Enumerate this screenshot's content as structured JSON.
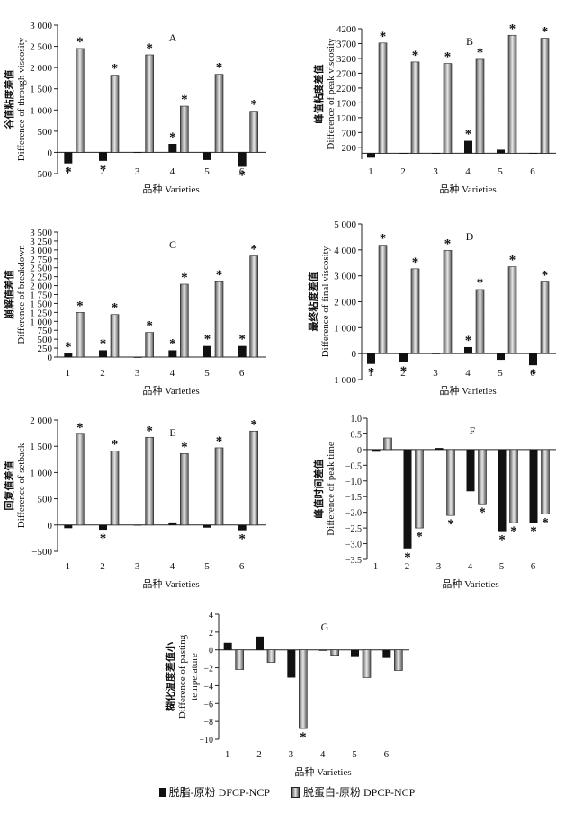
{
  "legend": {
    "dfcp": "脱脂-原粉 DFCP-NCP",
    "dpcp": "脱蛋白-原粉 DPCP-NCP"
  },
  "colors": {
    "dfcp": "#111111",
    "dpcp_light": "#e8e8e8",
    "dpcp_dark": "#555555",
    "axis": "#222222"
  },
  "chart_data": [
    {
      "type": "bar",
      "panel": "A",
      "xlabel": "品种 Varieties",
      "ylabel": [
        "谷值粘度差值",
        "Difference of through viscosity"
      ],
      "ylim": [
        -500,
        3000
      ],
      "yticks": [
        -500,
        0,
        500,
        1000,
        1500,
        2000,
        2500,
        3000
      ],
      "ytick_labels": [
        "−500",
        "0",
        "500",
        "1 000",
        "1 500",
        "2 000",
        "2 500",
        "3 000"
      ],
      "categories": [
        "1",
        "2",
        "3",
        "4",
        "5",
        "6"
      ],
      "series": [
        {
          "values": [
            -260,
            -200,
            0,
            200,
            -180,
            -340
          ]
        },
        {
          "values": [
            2450,
            1820,
            2300,
            1090,
            1840,
            970
          ]
        }
      ],
      "stars": [
        [
          true,
          true
        ],
        [
          true,
          true
        ],
        [
          false,
          true
        ],
        [
          true,
          true
        ],
        [
          false,
          true
        ],
        [
          true,
          true
        ]
      ]
    },
    {
      "type": "bar",
      "panel": "B",
      "xlabel": "品种 Varieties",
      "ylabel": [
        "峰值粘度差值",
        "Difference of peak viscosity"
      ],
      "ylim": [
        -200,
        4200
      ],
      "yticks": [
        200,
        700,
        1200,
        1700,
        2200,
        2700,
        3200,
        3700,
        4200
      ],
      "ytick_labels": [
        "200",
        "700",
        "1200",
        "1700",
        "2200",
        "2700",
        "3200",
        "3700",
        "4200"
      ],
      "categories": [
        "1",
        "2",
        "3",
        "4",
        "5",
        "6"
      ],
      "series": [
        {
          "values": [
            -150,
            0,
            0,
            420,
            120,
            0
          ]
        },
        {
          "values": [
            3720,
            3080,
            3030,
            3170,
            3980,
            3880
          ]
        }
      ],
      "stars": [
        [
          false,
          true
        ],
        [
          false,
          true
        ],
        [
          false,
          true
        ],
        [
          true,
          true
        ],
        [
          false,
          true
        ],
        [
          false,
          true
        ]
      ]
    },
    {
      "type": "bar",
      "panel": "C",
      "xlabel": "品种 Varieties",
      "ylabel": [
        "崩解值差值",
        "Difference of breakdown"
      ],
      "ylim": [
        0,
        3500
      ],
      "yticks": [
        0,
        250,
        500,
        750,
        1000,
        1250,
        1500,
        1750,
        2000,
        2250,
        2500,
        2750,
        3000,
        3250,
        3500
      ],
      "ytick_labels": [
        "0",
        "250",
        "500",
        "750",
        "1 000",
        "1 250",
        "1 500",
        "1 750",
        "2 000",
        "2 250",
        "2 500",
        "2 750",
        "3 000",
        "3 250",
        "3 500"
      ],
      "categories": [
        "1",
        "2",
        "3",
        "4",
        "5",
        "6"
      ],
      "series": [
        {
          "values": [
            100,
            190,
            -20,
            190,
            310,
            310
          ]
        },
        {
          "values": [
            1250,
            1190,
            690,
            2040,
            2110,
            2830
          ]
        }
      ],
      "stars": [
        [
          true,
          true
        ],
        [
          true,
          true
        ],
        [
          false,
          true
        ],
        [
          true,
          true
        ],
        [
          true,
          true
        ],
        [
          true,
          true
        ]
      ]
    },
    {
      "type": "bar",
      "panel": "D",
      "xlabel": "品种 Varieties",
      "ylabel": [
        "最终粘度差值",
        "Difference of final viscosity"
      ],
      "ylim": [
        -1000,
        5000
      ],
      "yticks": [
        -1000,
        0,
        1000,
        2000,
        3000,
        4000,
        5000
      ],
      "ytick_labels": [
        "−1 000",
        "0",
        "1 000",
        "2 000",
        "3 000",
        "4 000",
        "5 000"
      ],
      "categories": [
        "1",
        "2",
        "3",
        "4",
        "5",
        "6"
      ],
      "series": [
        {
          "values": [
            -400,
            -340,
            0,
            250,
            -240,
            -450
          ]
        },
        {
          "values": [
            4180,
            3270,
            3980,
            2470,
            3350,
            2760
          ]
        }
      ],
      "stars": [
        [
          true,
          true
        ],
        [
          true,
          true
        ],
        [
          false,
          true
        ],
        [
          true,
          true
        ],
        [
          false,
          true
        ],
        [
          true,
          true
        ]
      ]
    },
    {
      "type": "bar",
      "panel": "E",
      "xlabel": "品种 Varieties",
      "ylabel": [
        "回复值差值",
        "Difference of setback"
      ],
      "ylim": [
        -500,
        2000
      ],
      "yticks": [
        -500,
        0,
        500,
        1000,
        1500,
        2000
      ],
      "ytick_labels": [
        "−500",
        "0",
        "500",
        "1 000",
        "1 500",
        "2 000"
      ],
      "categories": [
        "1",
        "2",
        "3",
        "4",
        "5",
        "6"
      ],
      "series": [
        {
          "values": [
            -60,
            -90,
            0,
            50,
            -50,
            -100
          ]
        },
        {
          "values": [
            1730,
            1410,
            1670,
            1360,
            1470,
            1790
          ]
        }
      ],
      "stars": [
        [
          false,
          true
        ],
        [
          true,
          true
        ],
        [
          false,
          true
        ],
        [
          false,
          true
        ],
        [
          false,
          true
        ],
        [
          true,
          true
        ]
      ]
    },
    {
      "type": "bar",
      "panel": "F",
      "xlabel": "品种 Varieties",
      "ylabel": [
        "峰值时间差值",
        "Difference of peak time"
      ],
      "ylim": [
        -3.5,
        1.0
      ],
      "yticks": [
        -3.5,
        -3.0,
        -2.5,
        -2.0,
        -1.5,
        -1.0,
        -0.5,
        0,
        0.5,
        1.0
      ],
      "ytick_labels": [
        "−3.5",
        "−3.0",
        "−2.5",
        "−2.0",
        "−1.5",
        "−1.0",
        "−0.5",
        "0",
        "0.5",
        "1.0"
      ],
      "categories": [
        "1",
        "2",
        "3",
        "4",
        "5",
        "6"
      ],
      "series": [
        {
          "values": [
            -0.07,
            -3.15,
            0.05,
            -1.33,
            -2.6,
            -2.33
          ]
        },
        {
          "values": [
            0.37,
            -2.5,
            -2.1,
            -1.73,
            -2.33,
            -2.05
          ]
        }
      ],
      "stars": [
        [
          false,
          false
        ],
        [
          true,
          true
        ],
        [
          false,
          true
        ],
        [
          false,
          true
        ],
        [
          true,
          true
        ],
        [
          true,
          true
        ]
      ]
    },
    {
      "type": "bar",
      "panel": "G",
      "xlabel": "品种 Varieties",
      "ylabel": [
        "糊化温度差值小",
        "Difference of pasting",
        "temperature"
      ],
      "ylim": [
        -10,
        4
      ],
      "yticks": [
        -10,
        -8,
        -6,
        -4,
        -2,
        0,
        2,
        4
      ],
      "ytick_labels": [
        "−10",
        "−8",
        "−6",
        "−4",
        "−2",
        "0",
        "2",
        "4"
      ],
      "categories": [
        "1",
        "2",
        "3",
        "4",
        "5",
        "6"
      ],
      "series": [
        {
          "values": [
            0.8,
            1.5,
            -3.1,
            -0.1,
            -0.7,
            -0.9
          ]
        },
        {
          "values": [
            -2.2,
            -1.4,
            -8.8,
            -0.6,
            -3.1,
            -2.3
          ]
        }
      ],
      "stars": [
        [
          false,
          false
        ],
        [
          false,
          false
        ],
        [
          false,
          true
        ],
        [
          false,
          false
        ],
        [
          false,
          false
        ],
        [
          false,
          false
        ]
      ]
    }
  ]
}
